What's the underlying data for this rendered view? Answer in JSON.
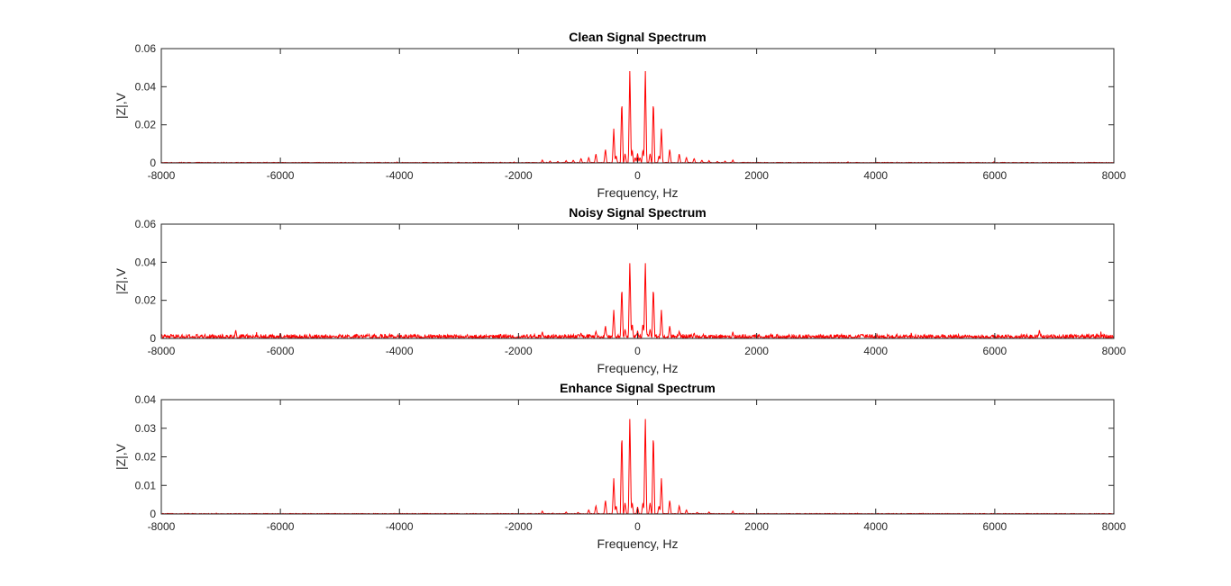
{
  "chart_data": [
    {
      "type": "line",
      "title": "Clean Signal Spectrum",
      "xlabel": "Frequency, Hz",
      "ylabel": "|Z|,V",
      "xlim": [
        -8000,
        8000
      ],
      "ylim": [
        0,
        0.06
      ],
      "xticks": [
        "-8000",
        "-6000",
        "-4000",
        "-2000",
        "0",
        "2000",
        "4000",
        "6000",
        "8000"
      ],
      "yticks": [
        "0",
        "0.02",
        "0.04",
        "0.06"
      ],
      "color": "#ff0000",
      "grid": false,
      "noise_floor": 0.0003,
      "peaks": [
        [
          -1600,
          0.0015
        ],
        [
          -1470,
          0.001
        ],
        [
          -1340,
          0.0008
        ],
        [
          -1200,
          0.0012
        ],
        [
          -1080,
          0.0015
        ],
        [
          -950,
          0.0025
        ],
        [
          -820,
          0.003
        ],
        [
          -700,
          0.005
        ],
        [
          -540,
          0.0075
        ],
        [
          -400,
          0.018
        ],
        [
          -360,
          0.004
        ],
        [
          -265,
          0.034
        ],
        [
          -210,
          0.005
        ],
        [
          -130,
          0.05
        ],
        [
          -90,
          0.007
        ],
        [
          -40,
          0.003
        ],
        [
          0,
          0.005
        ],
        [
          40,
          0.003
        ],
        [
          90,
          0.007
        ],
        [
          130,
          0.05
        ],
        [
          210,
          0.005
        ],
        [
          265,
          0.034
        ],
        [
          360,
          0.004
        ],
        [
          400,
          0.018
        ],
        [
          540,
          0.0075
        ],
        [
          700,
          0.005
        ],
        [
          820,
          0.003
        ],
        [
          950,
          0.0025
        ],
        [
          1080,
          0.0015
        ],
        [
          1200,
          0.0012
        ],
        [
          1340,
          0.0008
        ],
        [
          1470,
          0.001
        ],
        [
          1600,
          0.0015
        ]
      ]
    },
    {
      "type": "line",
      "title": "Noisy Signal Spectrum",
      "xlabel": "Frequency, Hz",
      "ylabel": "|Z|,V",
      "xlim": [
        -8000,
        8000
      ],
      "ylim": [
        0,
        0.06
      ],
      "xticks": [
        "-8000",
        "-6000",
        "-4000",
        "-2000",
        "0",
        "2000",
        "4000",
        "6000",
        "8000"
      ],
      "yticks": [
        "0",
        "0.02",
        "0.04",
        "0.06"
      ],
      "color": "#ff0000",
      "grid": false,
      "noise_floor": 0.0022,
      "peaks": [
        [
          -6750,
          0.0045
        ],
        [
          -1600,
          0.0035
        ],
        [
          -950,
          0.003
        ],
        [
          -700,
          0.004
        ],
        [
          -540,
          0.007
        ],
        [
          -400,
          0.015
        ],
        [
          -265,
          0.028
        ],
        [
          -210,
          0.005
        ],
        [
          -130,
          0.041
        ],
        [
          -90,
          0.008
        ],
        [
          0,
          0.004
        ],
        [
          90,
          0.008
        ],
        [
          130,
          0.041
        ],
        [
          210,
          0.005
        ],
        [
          265,
          0.028
        ],
        [
          400,
          0.015
        ],
        [
          540,
          0.007
        ],
        [
          700,
          0.004
        ],
        [
          950,
          0.003
        ],
        [
          1600,
          0.0035
        ],
        [
          6750,
          0.0045
        ]
      ]
    },
    {
      "type": "line",
      "title": "Enhance Signal Spectrum",
      "xlabel": "Frequency, Hz",
      "ylabel": "|Z|,V",
      "xlim": [
        -8000,
        8000
      ],
      "ylim": [
        0,
        0.04
      ],
      "xticks": [
        "-8000",
        "-6000",
        "-4000",
        "-2000",
        "0",
        "2000",
        "4000",
        "6000",
        "8000"
      ],
      "yticks": [
        "0",
        "0.01",
        "0.02",
        "0.03",
        "0.04"
      ],
      "color": "#ff0000",
      "grid": false,
      "noise_floor": 0.0002,
      "peaks": [
        [
          -1600,
          0.001
        ],
        [
          -1200,
          0.0007
        ],
        [
          -1000,
          0.0006
        ],
        [
          -820,
          0.0015
        ],
        [
          -700,
          0.003
        ],
        [
          -540,
          0.005
        ],
        [
          -400,
          0.0125
        ],
        [
          -360,
          0.003
        ],
        [
          -265,
          0.0295
        ],
        [
          -210,
          0.004
        ],
        [
          -130,
          0.0345
        ],
        [
          -90,
          0.004
        ],
        [
          0,
          0.0025
        ],
        [
          90,
          0.004
        ],
        [
          130,
          0.0345
        ],
        [
          210,
          0.004
        ],
        [
          265,
          0.0295
        ],
        [
          360,
          0.003
        ],
        [
          400,
          0.0125
        ],
        [
          540,
          0.005
        ],
        [
          700,
          0.003
        ],
        [
          820,
          0.0015
        ],
        [
          1000,
          0.0006
        ],
        [
          1200,
          0.0007
        ],
        [
          1600,
          0.001
        ]
      ]
    }
  ]
}
